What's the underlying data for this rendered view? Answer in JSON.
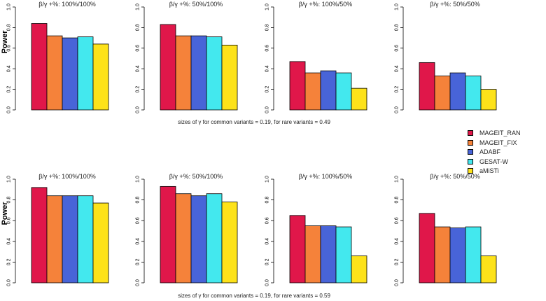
{
  "chart_data": {
    "type": "bar",
    "ylabel": "Power",
    "ylim": [
      0,
      1
    ],
    "yticks": [
      "0.0",
      "0.2",
      "0.4",
      "0.6",
      "0.8",
      "1.0"
    ],
    "grid": false,
    "legend_position": "right-middle",
    "series_names": [
      "MAGEIT_RAN",
      "MAGEIT_FIX",
      "ADABF",
      "GESAT-W",
      "aMiSTi"
    ],
    "colors": [
      "#e0174a",
      "#f5823a",
      "#4864d8",
      "#43e8ee",
      "#fde21a"
    ],
    "rows": [
      {
        "caption": "sizes of γ for common variants = 0.19, for rare variants = 0.49",
        "panels": [
          {
            "title": "β/γ +%: 100%/100%",
            "values": [
              0.84,
              0.72,
              0.7,
              0.71,
              0.64
            ]
          },
          {
            "title": "β/γ +%: 50%/100%",
            "values": [
              0.83,
              0.72,
              0.72,
              0.71,
              0.63
            ]
          },
          {
            "title": "β/γ +%: 100%/50%",
            "values": [
              0.47,
              0.36,
              0.38,
              0.36,
              0.21
            ]
          },
          {
            "title": "β/γ +%: 50%/50%",
            "values": [
              0.46,
              0.33,
              0.36,
              0.33,
              0.2
            ]
          }
        ]
      },
      {
        "caption": "sizes of γ for common variants = 0.19, for rare variants = 0.59",
        "panels": [
          {
            "title": "β/γ +%: 100%/100%",
            "values": [
              0.92,
              0.84,
              0.84,
              0.84,
              0.77
            ]
          },
          {
            "title": "β/γ +%: 50%/100%",
            "values": [
              0.93,
              0.86,
              0.84,
              0.86,
              0.78
            ]
          },
          {
            "title": "β/γ +%: 100%/50%",
            "values": [
              0.65,
              0.55,
              0.55,
              0.54,
              0.26
            ]
          },
          {
            "title": "β/γ +%: 50%/50%",
            "values": [
              0.67,
              0.54,
              0.53,
              0.54,
              0.26
            ]
          }
        ]
      }
    ]
  }
}
